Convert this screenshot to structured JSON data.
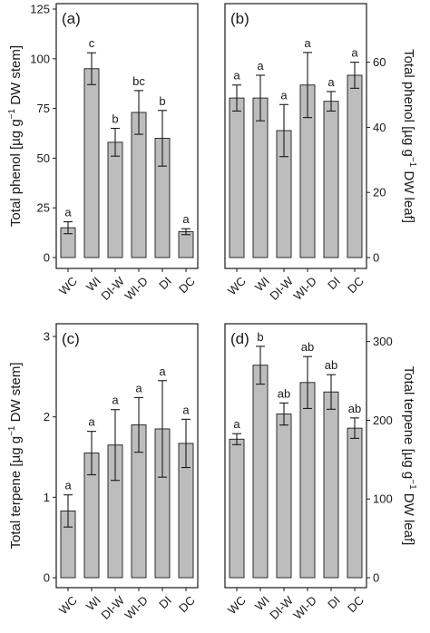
{
  "colors": {
    "bar": "#bdbdbd",
    "axis": "#1a1a1a",
    "background": "#ffffff"
  },
  "chart_data": [
    {
      "panel_label": "(a)",
      "type": "bar",
      "categories": [
        "WC",
        "WI",
        "DI-W",
        "WI-D",
        "DI",
        "DC"
      ],
      "values": [
        15,
        95,
        58,
        73,
        60,
        13
      ],
      "errors": [
        3,
        8,
        7,
        11,
        14,
        1.5
      ],
      "letters": [
        "a",
        "c",
        "b",
        "bc",
        "b",
        "a"
      ],
      "ylabel_main": "Total phenol [µg g",
      "ylabel_exp": "−1",
      "ylabel_tail": " DW stem]",
      "y_axis_side": "left",
      "ylim": [
        0,
        125
      ],
      "yticks": [
        0,
        25,
        50,
        75,
        100,
        125
      ],
      "ytick_labels": [
        "0",
        "25",
        "50",
        "75",
        "100",
        "125"
      ],
      "show_category_labels": true,
      "grid": false
    },
    {
      "panel_label": "(b)",
      "type": "bar",
      "categories": [
        "WC",
        "WI",
        "DI-W",
        "WI-D",
        "DI",
        "DC"
      ],
      "values": [
        49,
        49,
        39,
        53,
        48,
        56
      ],
      "errors": [
        4,
        7,
        8,
        10,
        3,
        4
      ],
      "letters": [
        "a",
        "a",
        "a",
        "a",
        "a",
        "a"
      ],
      "ylabel_main": "Total phenol [µg g",
      "ylabel_exp": "−1",
      "ylabel_tail": " DW leaf]",
      "y_axis_side": "right",
      "ylim": [
        0,
        78
      ],
      "yticks": [
        0,
        20,
        40,
        60
      ],
      "ytick_labels": [
        "0",
        "20",
        "40",
        "60"
      ],
      "show_category_labels": true,
      "grid": false
    },
    {
      "panel_label": "(c)",
      "type": "bar",
      "categories": [
        "WC",
        "WI",
        "DI-W",
        "WI-D",
        "DI",
        "DC"
      ],
      "values": [
        0.83,
        1.55,
        1.65,
        1.9,
        1.85,
        1.67
      ],
      "errors": [
        0.2,
        0.27,
        0.44,
        0.34,
        0.6,
        0.3
      ],
      "letters": [
        "a",
        "a",
        "a",
        "a",
        "a",
        "a"
      ],
      "ylabel_main": "Total terpene [µg g",
      "ylabel_exp": "−1",
      "ylabel_tail": " DW stem]",
      "y_axis_side": "left",
      "ylim": [
        0,
        3
      ],
      "yticks": [
        0,
        1,
        2,
        3
      ],
      "ytick_labels": [
        "0",
        "1",
        "2",
        "3"
      ],
      "show_category_labels": true,
      "grid": false
    },
    {
      "panel_label": "(d)",
      "type": "bar",
      "categories": [
        "WC",
        "WI",
        "DI-W",
        "WI-D",
        "DI",
        "DC"
      ],
      "values": [
        176,
        270,
        208,
        248,
        236,
        190
      ],
      "errors": [
        7,
        24,
        14,
        33,
        22,
        13
      ],
      "letters": [
        "a",
        "b",
        "ab",
        "ab",
        "ab",
        "ab"
      ],
      "ylabel_main": "Total terpene [µg g",
      "ylabel_exp": "−1",
      "ylabel_tail": " DW leaf]",
      "y_axis_side": "right",
      "ylim": [
        0,
        310
      ],
      "yticks": [
        0,
        100,
        200,
        300
      ],
      "ytick_labels": [
        "0",
        "100",
        "200",
        "300"
      ],
      "show_category_labels": true,
      "grid": false
    }
  ]
}
